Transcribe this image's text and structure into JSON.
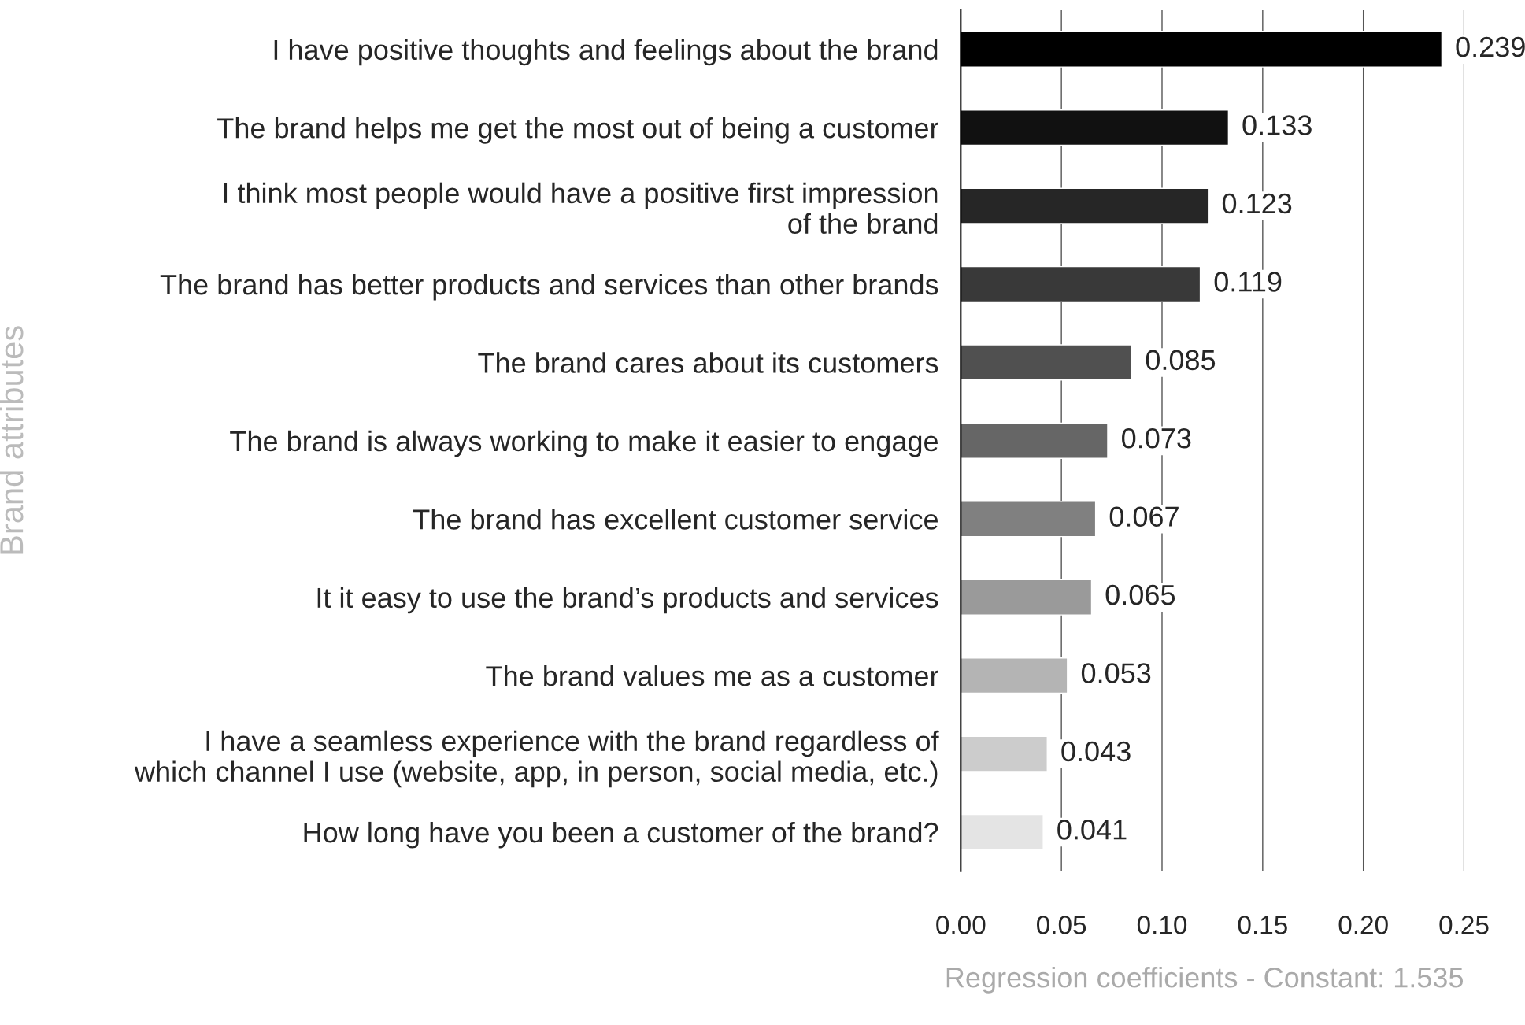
{
  "chart_data": {
    "type": "bar",
    "orientation": "horizontal",
    "categories": [
      "I have positive thoughts and feelings about the brand",
      "The brand helps me get the most out of being a customer",
      "I think most people would have a positive first impression\nof the brand",
      "The brand has better products and services than other brands",
      "The brand cares about its customers",
      "The brand is always working to make it easier to engage",
      "The brand has excellent customer service",
      "It it easy to use the brand’s products and services",
      "The brand values me as a customer",
      "I have a seamless experience with the brand regardless of\nwhich channel I use (website, app, in person, social media, etc.)",
      "How long have you been a customer of the brand?"
    ],
    "values": [
      0.239,
      0.133,
      0.123,
      0.119,
      0.085,
      0.073,
      0.067,
      0.065,
      0.053,
      0.043,
      0.041
    ],
    "colors": [
      "#000000",
      "#111111",
      "#262626",
      "#393939",
      "#505050",
      "#666666",
      "#808080",
      "#9a9a9a",
      "#b4b4b4",
      "#cccccc",
      "#e4e4e4"
    ],
    "xlim": [
      0,
      0.25
    ],
    "xticks": [
      "0.00",
      "0.05",
      "0.10",
      "0.15",
      "0.20",
      "0.25"
    ],
    "xlabel": "Regression coefficients - Constant: 1.535",
    "ylabel": "Brand attributes",
    "grid": "x",
    "data_labels": true
  }
}
